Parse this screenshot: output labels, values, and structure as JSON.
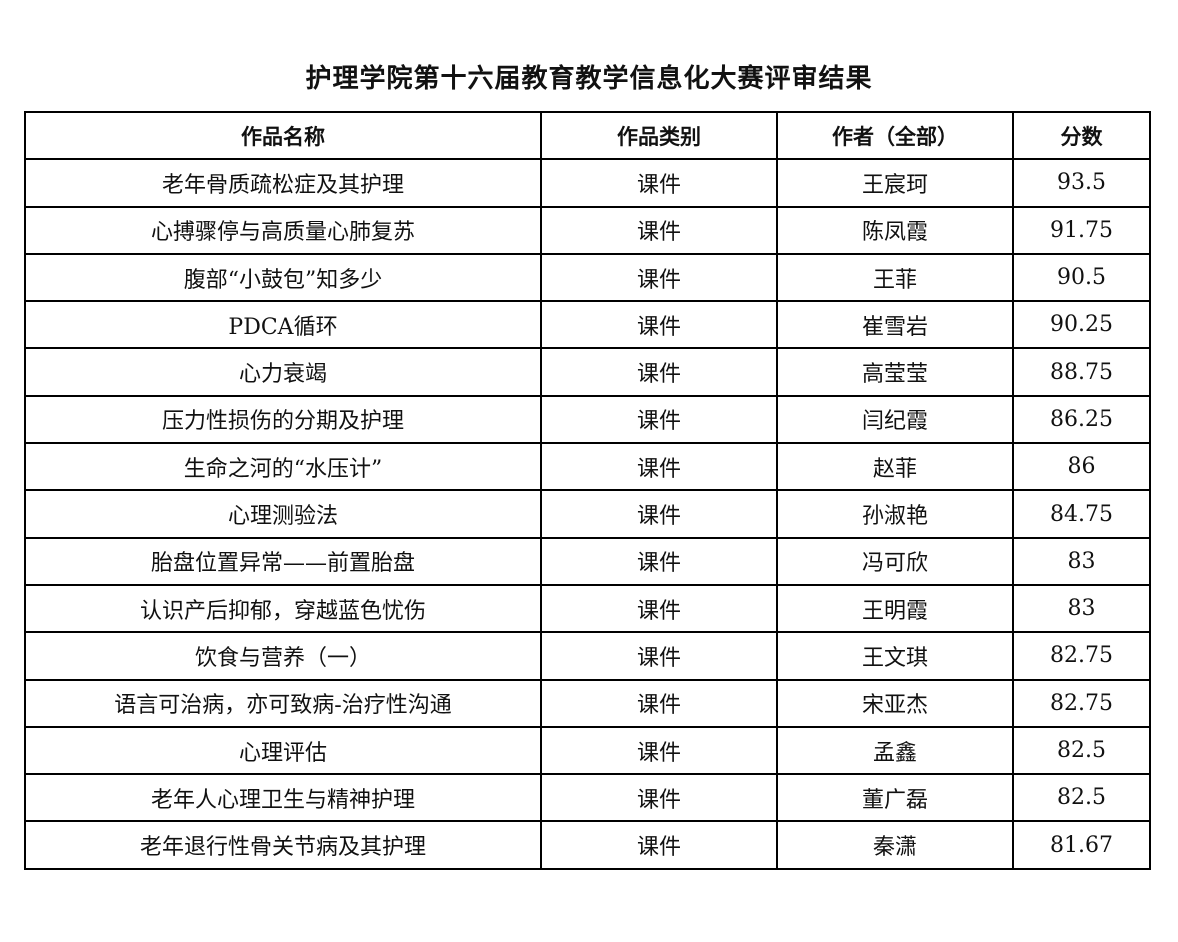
{
  "title": "护理学院第十六届教育教学信息化大赛评审结果",
  "table": {
    "headers": [
      "作品名称",
      "作品类别",
      "作者（全部）",
      "分数"
    ],
    "rows": [
      [
        "老年骨质疏松症及其护理",
        "课件",
        "王宸珂",
        "93.5"
      ],
      [
        "心搏骤停与高质量心肺复苏",
        "课件",
        "陈凤霞",
        "91.75"
      ],
      [
        "腹部“小鼓包”知多少",
        "课件",
        "王菲",
        "90.5"
      ],
      [
        "PDCA循环",
        "课件",
        "崔雪岩",
        "90.25"
      ],
      [
        "心力衰竭",
        "课件",
        "高莹莹",
        "88.75"
      ],
      [
        "压力性损伤的分期及护理",
        "课件",
        "闫纪霞",
        "86.25"
      ],
      [
        "生命之河的“水压计”",
        "课件",
        "赵菲",
        "86"
      ],
      [
        "心理测验法",
        "课件",
        "孙淑艳",
        "84.75"
      ],
      [
        "胎盘位置异常——前置胎盘",
        "课件",
        "冯可欣",
        "83"
      ],
      [
        "认识产后抑郁，穿越蓝色忧伤",
        "课件",
        "王明霞",
        "83"
      ],
      [
        "饮食与营养（一）",
        "课件",
        "王文琪",
        "82.75"
      ],
      [
        "语言可治病，亦可致病-治疗性沟通",
        "课件",
        "宋亚杰",
        "82.75"
      ],
      [
        "心理评估",
        "课件",
        "孟鑫",
        "82.5"
      ],
      [
        "老年人心理卫生与精神护理",
        "课件",
        "董广磊",
        "82.5"
      ],
      [
        "老年退行性骨关节病及其护理",
        "课件",
        "秦潇",
        "81.67"
      ]
    ]
  }
}
